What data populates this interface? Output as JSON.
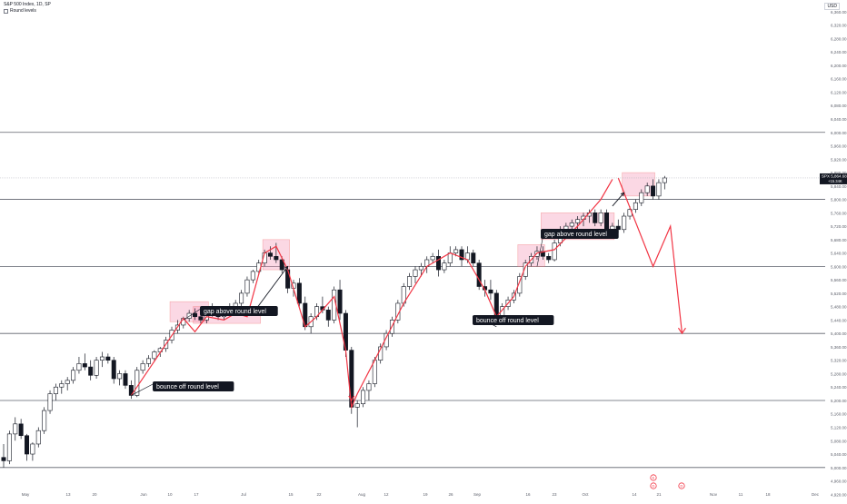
{
  "header": {
    "symbol_title": "S&P 500 Index, 1D, SP",
    "indicator_label": "Round levels",
    "currency": "USD"
  },
  "price_badge": {
    "symbol": "SPX",
    "price": "5,864.68",
    "change": "+15.34K"
  },
  "chart_data": {
    "type": "candlestick",
    "price_axis": {
      "ticks": [
        "6,360.00",
        "6,320.00",
        "6,280.00",
        "6,240.00",
        "6,200.00",
        "6,160.00",
        "6,120.00",
        "6,080.00",
        "6,040.00",
        "6,000.00",
        "5,960.00",
        "5,920.00",
        "5,880.00",
        "5,840.00",
        "5,800.00",
        "5,760.00",
        "5,720.00",
        "5,680.00",
        "5,640.00",
        "5,600.00",
        "5,560.00",
        "5,520.00",
        "5,480.00",
        "5,440.00",
        "5,400.00",
        "5,360.00",
        "5,320.00",
        "5,280.00",
        "5,240.00",
        "5,200.00",
        "5,160.00",
        "5,120.00",
        "5,080.00",
        "5,040.00",
        "5,000.00",
        "4,960.00",
        "4,920.00"
      ],
      "range": [
        4910,
        6395
      ]
    },
    "time_axis": {
      "labels": [
        "May",
        "13",
        "20",
        "Jun",
        "10",
        "17",
        "Jul",
        "15",
        "22",
        "Aug",
        "12",
        "19",
        "26",
        "Sep",
        "16",
        "23",
        "Oct",
        "14",
        "21",
        "Nov",
        "11",
        "18",
        "Dec"
      ]
    },
    "round_levels": [
      5000,
      5200,
      5400,
      5600,
      5800,
      6000
    ],
    "candles": [
      [
        5030,
        5070,
        5000,
        5020
      ],
      [
        5020,
        5110,
        5010,
        5100
      ],
      [
        5100,
        5150,
        5080,
        5130
      ],
      [
        5130,
        5145,
        5085,
        5095
      ],
      [
        5095,
        5100,
        5020,
        5040
      ],
      [
        5040,
        5075,
        5020,
        5070
      ],
      [
        5070,
        5120,
        5060,
        5110
      ],
      [
        5110,
        5180,
        5100,
        5170
      ],
      [
        5170,
        5230,
        5160,
        5220
      ],
      [
        5220,
        5250,
        5200,
        5240
      ],
      [
        5240,
        5260,
        5220,
        5250
      ],
      [
        5250,
        5270,
        5230,
        5260
      ],
      [
        5260,
        5300,
        5250,
        5290
      ],
      [
        5290,
        5330,
        5280,
        5310
      ],
      [
        5310,
        5340,
        5290,
        5300
      ],
      [
        5300,
        5320,
        5260,
        5275
      ],
      [
        5275,
        5330,
        5265,
        5320
      ],
      [
        5320,
        5345,
        5300,
        5330
      ],
      [
        5330,
        5340,
        5310,
        5320
      ],
      [
        5320,
        5330,
        5250,
        5265
      ],
      [
        5265,
        5290,
        5245,
        5280
      ],
      [
        5280,
        5290,
        5235,
        5245
      ],
      [
        5245,
        5260,
        5205,
        5215
      ],
      [
        5215,
        5300,
        5210,
        5290
      ],
      [
        5290,
        5320,
        5280,
        5310
      ],
      [
        5310,
        5335,
        5300,
        5325
      ],
      [
        5325,
        5350,
        5315,
        5345
      ],
      [
        5345,
        5360,
        5330,
        5355
      ],
      [
        5355,
        5390,
        5345,
        5380
      ],
      [
        5380,
        5420,
        5370,
        5410
      ],
      [
        5410,
        5440,
        5400,
        5425
      ],
      [
        5425,
        5450,
        5415,
        5445
      ],
      [
        5445,
        5470,
        5435,
        5460
      ],
      [
        5460,
        5475,
        5440,
        5450
      ],
      [
        5450,
        5470,
        5430,
        5440
      ],
      [
        5440,
        5480,
        5430,
        5460
      ],
      [
        5460,
        5490,
        5450,
        5470
      ],
      [
        5470,
        5480,
        5440,
        5450
      ],
      [
        5450,
        5470,
        5440,
        5460
      ],
      [
        5460,
        5490,
        5450,
        5475
      ],
      [
        5475,
        5500,
        5465,
        5490
      ],
      [
        5490,
        5530,
        5480,
        5520
      ],
      [
        5520,
        5570,
        5510,
        5560
      ],
      [
        5560,
        5590,
        5550,
        5585
      ],
      [
        5585,
        5620,
        5575,
        5610
      ],
      [
        5610,
        5650,
        5600,
        5640
      ],
      [
        5640,
        5660,
        5620,
        5630
      ],
      [
        5630,
        5670,
        5610,
        5620
      ],
      [
        5620,
        5630,
        5580,
        5590
      ],
      [
        5590,
        5600,
        5520,
        5535
      ],
      [
        5535,
        5560,
        5510,
        5550
      ],
      [
        5550,
        5565,
        5480,
        5490
      ],
      [
        5490,
        5510,
        5410,
        5420
      ],
      [
        5420,
        5460,
        5400,
        5450
      ],
      [
        5450,
        5490,
        5440,
        5480
      ],
      [
        5480,
        5510,
        5460,
        5470
      ],
      [
        5470,
        5480,
        5420,
        5440
      ],
      [
        5440,
        5540,
        5430,
        5530
      ],
      [
        5530,
        5560,
        5440,
        5460
      ],
      [
        5460,
        5470,
        5330,
        5350
      ],
      [
        5350,
        5360,
        5160,
        5180
      ],
      [
        5180,
        5200,
        5120,
        5190
      ],
      [
        5190,
        5240,
        5180,
        5230
      ],
      [
        5230,
        5260,
        5200,
        5250
      ],
      [
        5250,
        5330,
        5240,
        5320
      ],
      [
        5320,
        5370,
        5310,
        5360
      ],
      [
        5360,
        5410,
        5350,
        5400
      ],
      [
        5400,
        5450,
        5390,
        5440
      ],
      [
        5440,
        5500,
        5430,
        5490
      ],
      [
        5490,
        5550,
        5480,
        5540
      ],
      [
        5540,
        5580,
        5530,
        5570
      ],
      [
        5570,
        5600,
        5550,
        5590
      ],
      [
        5590,
        5610,
        5570,
        5600
      ],
      [
        5600,
        5630,
        5580,
        5620
      ],
      [
        5620,
        5640,
        5610,
        5630
      ],
      [
        5630,
        5650,
        5570,
        5590
      ],
      [
        5590,
        5620,
        5580,
        5610
      ],
      [
        5610,
        5660,
        5600,
        5640
      ],
      [
        5640,
        5660,
        5630,
        5650
      ],
      [
        5650,
        5660,
        5600,
        5620
      ],
      [
        5620,
        5660,
        5610,
        5640
      ],
      [
        5640,
        5650,
        5600,
        5610
      ],
      [
        5610,
        5620,
        5530,
        5540
      ],
      [
        5540,
        5560,
        5510,
        5530
      ],
      [
        5530,
        5560,
        5500,
        5520
      ],
      [
        5520,
        5530,
        5430,
        5450
      ],
      [
        5450,
        5490,
        5440,
        5480
      ],
      [
        5480,
        5510,
        5470,
        5500
      ],
      [
        5500,
        5530,
        5490,
        5520
      ],
      [
        5520,
        5580,
        5510,
        5570
      ],
      [
        5570,
        5620,
        5560,
        5610
      ],
      [
        5610,
        5640,
        5600,
        5630
      ],
      [
        5630,
        5660,
        5620,
        5645
      ],
      [
        5645,
        5660,
        5620,
        5630
      ],
      [
        5630,
        5640,
        5610,
        5620
      ],
      [
        5620,
        5680,
        5615,
        5670
      ],
      [
        5670,
        5720,
        5660,
        5710
      ],
      [
        5710,
        5730,
        5690,
        5720
      ],
      [
        5720,
        5740,
        5700,
        5730
      ],
      [
        5730,
        5750,
        5710,
        5740
      ],
      [
        5740,
        5760,
        5720,
        5750
      ],
      [
        5750,
        5770,
        5730,
        5760
      ],
      [
        5760,
        5770,
        5720,
        5730
      ],
      [
        5730,
        5770,
        5720,
        5760
      ],
      [
        5760,
        5770,
        5700,
        5710
      ],
      [
        5710,
        5730,
        5690,
        5720
      ],
      [
        5720,
        5740,
        5700,
        5710
      ],
      [
        5710,
        5760,
        5700,
        5750
      ],
      [
        5750,
        5780,
        5740,
        5770
      ],
      [
        5770,
        5800,
        5760,
        5790
      ],
      [
        5790,
        5830,
        5780,
        5820
      ],
      [
        5820,
        5850,
        5810,
        5840
      ],
      [
        5840,
        5860,
        5800,
        5810
      ],
      [
        5810,
        5860,
        5800,
        5850
      ],
      [
        5850,
        5870,
        5830,
        5864
      ]
    ],
    "projection_path": [
      [
        106,
        5864
      ],
      [
        112,
        5600
      ],
      [
        115,
        5720
      ],
      [
        117,
        5400
      ]
    ],
    "zigzag_path": [
      [
        22,
        5215
      ],
      [
        31,
        5445
      ],
      [
        33,
        5405
      ],
      [
        35,
        5450
      ],
      [
        38,
        5440
      ],
      [
        40,
        5460
      ],
      [
        42,
        5450
      ],
      [
        45,
        5640
      ],
      [
        47,
        5660
      ],
      [
        49,
        5590
      ],
      [
        52,
        5420
      ],
      [
        54,
        5450
      ],
      [
        57,
        5510
      ],
      [
        59,
        5350
      ],
      [
        60,
        5180
      ],
      [
        61,
        5220
      ],
      [
        64,
        5320
      ],
      [
        69,
        5490
      ],
      [
        73,
        5600
      ],
      [
        77,
        5640
      ],
      [
        80,
        5620
      ],
      [
        83,
        5530
      ],
      [
        85,
        5450
      ],
      [
        88,
        5510
      ],
      [
        90,
        5600
      ],
      [
        92,
        5640
      ],
      [
        95,
        5650
      ],
      [
        99,
        5720
      ],
      [
        103,
        5800
      ],
      [
        105,
        5860
      ]
    ],
    "annotations": [
      {
        "text": "bounce off round level"
      },
      {
        "text": "gap above round level"
      },
      {
        "text": "bounce off round level"
      },
      {
        "text": "gap above round level"
      }
    ],
    "event_markers": [
      "E",
      "D",
      "D"
    ]
  }
}
